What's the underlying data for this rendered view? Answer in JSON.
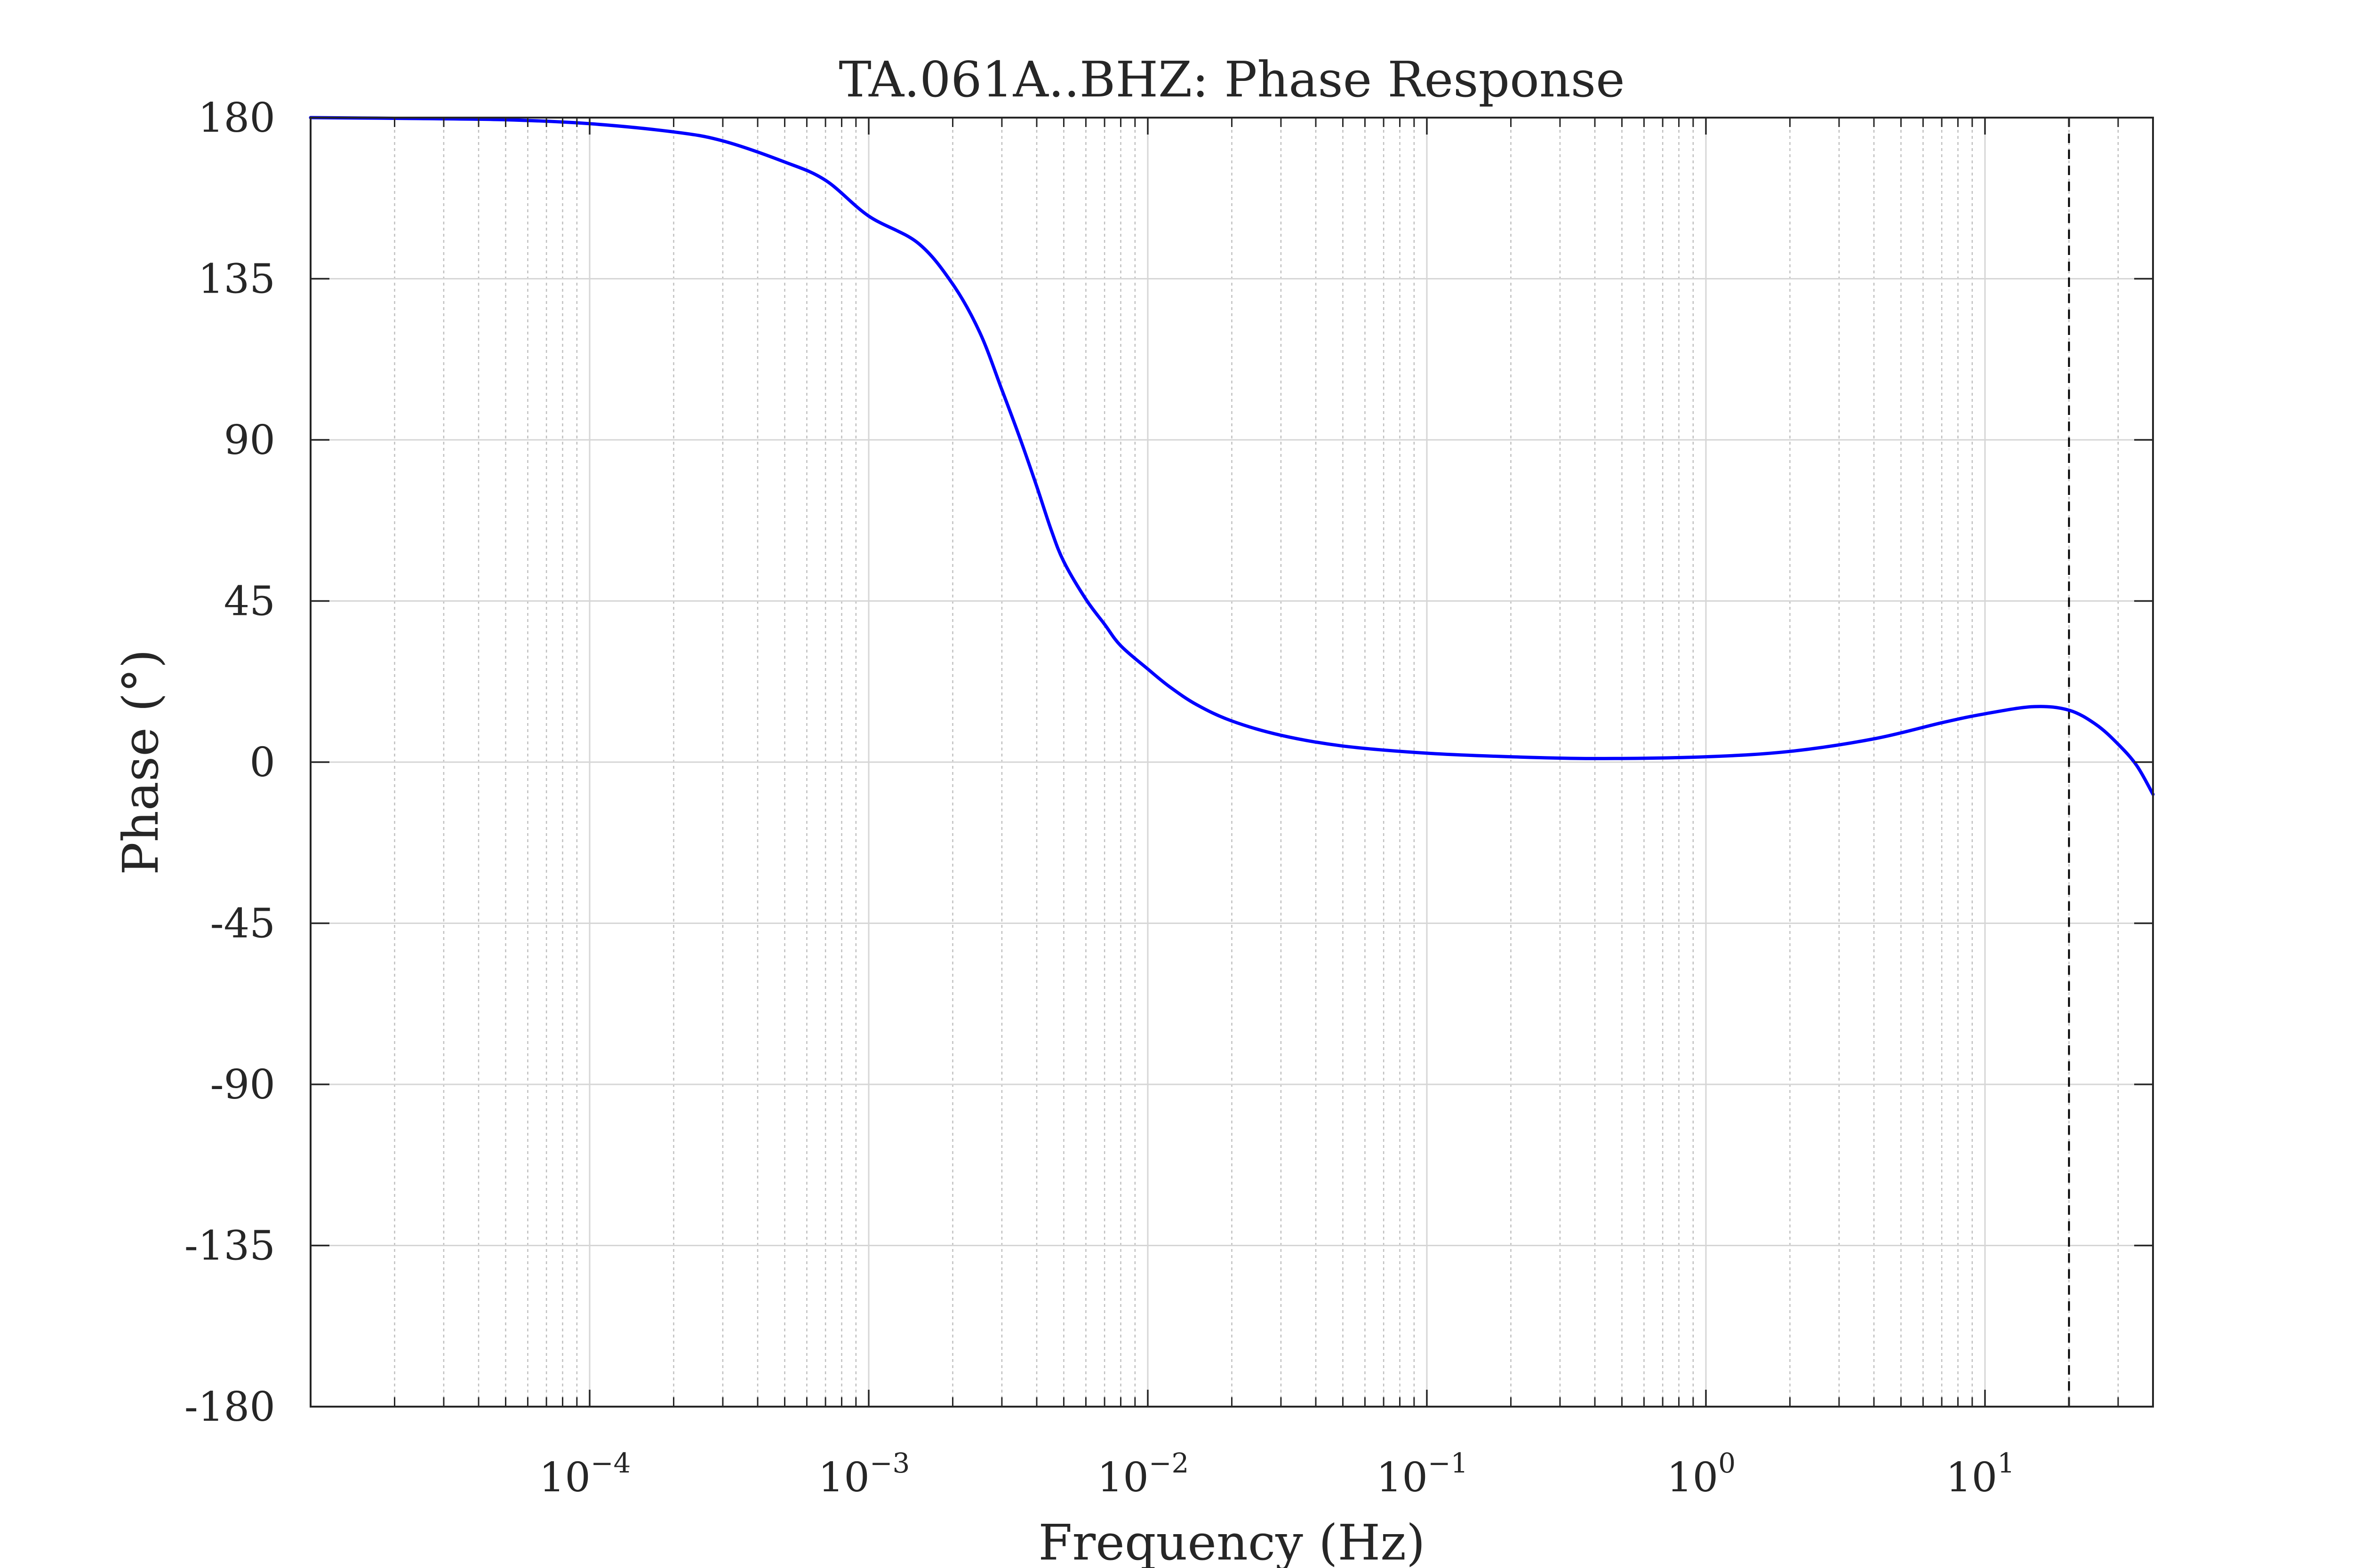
{
  "chart_data": {
    "type": "line",
    "title": "TA.061A..BHZ: Phase Response",
    "xlabel": "Frequency (Hz)",
    "ylabel": "Phase (°)",
    "xscale": "log",
    "xlim": [
      1e-05,
      40
    ],
    "ylim": [
      -180,
      180
    ],
    "xticks": [
      {
        "base": "10",
        "exp": "−4",
        "value": 0.0001
      },
      {
        "base": "10",
        "exp": "−3",
        "value": 0.001
      },
      {
        "base": "10",
        "exp": "−2",
        "value": 0.01
      },
      {
        "base": "10",
        "exp": "−1",
        "value": 0.1
      },
      {
        "base": "10",
        "exp": "0",
        "value": 1
      },
      {
        "base": "10",
        "exp": "1",
        "value": 10
      }
    ],
    "yticks": [
      {
        "label": "180",
        "value": 180
      },
      {
        "label": "135",
        "value": 135
      },
      {
        "label": "90",
        "value": 90
      },
      {
        "label": "45",
        "value": 45
      },
      {
        "label": "0",
        "value": 0
      },
      {
        "label": "-45",
        "value": -45
      },
      {
        "label": "-90",
        "value": -90
      },
      {
        "label": "-135",
        "value": -135
      },
      {
        "label": "-180",
        "value": -180
      }
    ],
    "grid": true,
    "series": [
      {
        "color": "#0000ff",
        "x": [
          1e-05,
          2e-05,
          5e-05,
          0.0001,
          0.0002,
          0.0003,
          0.0005,
          0.0007,
          0.001,
          0.0015,
          0.002,
          0.0025,
          0.003,
          0.0035,
          0.004,
          0.0045,
          0.005,
          0.006,
          0.007,
          0.008,
          0.01,
          0.012,
          0.015,
          0.02,
          0.03,
          0.05,
          0.1,
          0.2,
          0.4,
          1,
          2,
          4,
          7,
          10,
          15,
          20,
          25,
          30,
          35,
          40
        ],
        "y": [
          180,
          179.8,
          179.4,
          178.3,
          176,
          173.5,
          167.6,
          162.5,
          152.5,
          145,
          133.5,
          120,
          104,
          90,
          77,
          65,
          56,
          45.5,
          38.5,
          32.5,
          26,
          21,
          16,
          11.5,
          7.5,
          4.5,
          2.5,
          1.5,
          1,
          1.5,
          3,
          6.5,
          11,
          13.5,
          15.5,
          14.5,
          10.5,
          5,
          -1,
          -9
        ]
      }
    ],
    "reference_lines": [
      {
        "axis": "x",
        "value": 20,
        "style": "dashed",
        "color": "#000000"
      }
    ]
  }
}
